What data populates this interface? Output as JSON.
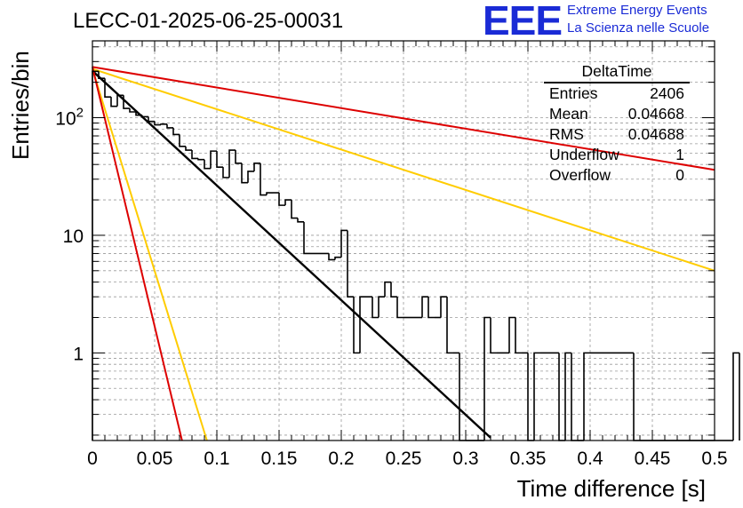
{
  "header": {
    "title": "LECC-01-2025-06-25-00031",
    "logo_text": "EEE",
    "logo_line1": "Extreme Energy Events",
    "logo_line2": "La Scienza nelle Scuole",
    "logo_color": "#1a2bd6"
  },
  "stats_box": {
    "name": "DeltaTime",
    "rows": [
      {
        "label": "Entries",
        "value": "2406"
      },
      {
        "label": "Mean",
        "value": "0.04668"
      },
      {
        "label": "RMS",
        "value": "0.04688"
      },
      {
        "label": "Underflow",
        "value": "1"
      },
      {
        "label": "Overflow",
        "value": "0"
      }
    ]
  },
  "chart_data": {
    "type": "line",
    "title": "LECC-01-2025-06-25-00031",
    "xlabel": "Time difference [s]",
    "ylabel": "Entries/bin",
    "xlim": [
      0,
      0.5
    ],
    "ylim": [
      0.18,
      450
    ],
    "y_scale": "log",
    "grid": true,
    "x_ticks": [
      "0",
      "0.05",
      "0.1",
      "0.15",
      "0.2",
      "0.25",
      "0.3",
      "0.35",
      "0.4",
      "0.45",
      "0.5"
    ],
    "y_ticks": [
      {
        "value": 1,
        "label": "1"
      },
      {
        "value": 10,
        "label": "10"
      },
      {
        "value": 100,
        "label": "10",
        "sup": "2"
      }
    ],
    "histogram": {
      "name": "DeltaTime",
      "bin_width": 0.005,
      "x_start": 0,
      "color": "#000000",
      "counts": [
        248,
        216,
        150,
        125,
        155,
        120,
        112,
        105,
        102,
        93,
        87,
        88,
        82,
        72,
        57,
        53,
        45,
        44,
        37,
        52,
        38,
        31,
        53,
        41,
        28,
        35,
        41,
        22,
        23,
        23,
        18,
        20,
        14,
        13,
        7,
        7,
        7,
        7,
        6.2,
        6.5,
        11,
        3,
        1,
        3,
        3,
        2,
        3,
        4,
        3,
        2,
        2,
        2,
        2,
        3,
        2,
        2,
        3,
        1,
        1,
        0.15,
        0.15,
        0.15,
        0.15,
        2,
        1,
        1,
        1,
        2,
        1,
        1,
        0.15,
        1,
        1,
        1,
        1,
        0.15,
        1,
        0.15,
        0.15,
        1,
        1,
        1,
        1,
        1,
        1,
        1,
        1,
        0.15,
        0.15,
        0.15,
        0.15,
        0.15,
        0.15,
        0.15,
        0.15,
        0.15,
        0.15,
        0.15,
        0.15,
        0.15,
        0.15,
        0.15,
        0.15,
        1
      ]
    },
    "series": [
      {
        "color": "#000000",
        "points": [
          [
            0,
            250
          ],
          [
            0.32,
            0.19
          ]
        ]
      },
      {
        "color": "#ffcc00",
        "points": [
          [
            0,
            260
          ],
          [
            0.5,
            5
          ]
        ]
      },
      {
        "color": "#ffcc00",
        "points": [
          [
            0,
            260
          ],
          [
            0.092,
            0.18
          ]
        ]
      },
      {
        "color": "#dd0000",
        "points": [
          [
            0,
            270
          ],
          [
            0.5,
            36
          ]
        ]
      },
      {
        "color": "#dd0000",
        "points": [
          [
            0,
            270
          ],
          [
            0.072,
            0.18
          ]
        ]
      }
    ]
  }
}
